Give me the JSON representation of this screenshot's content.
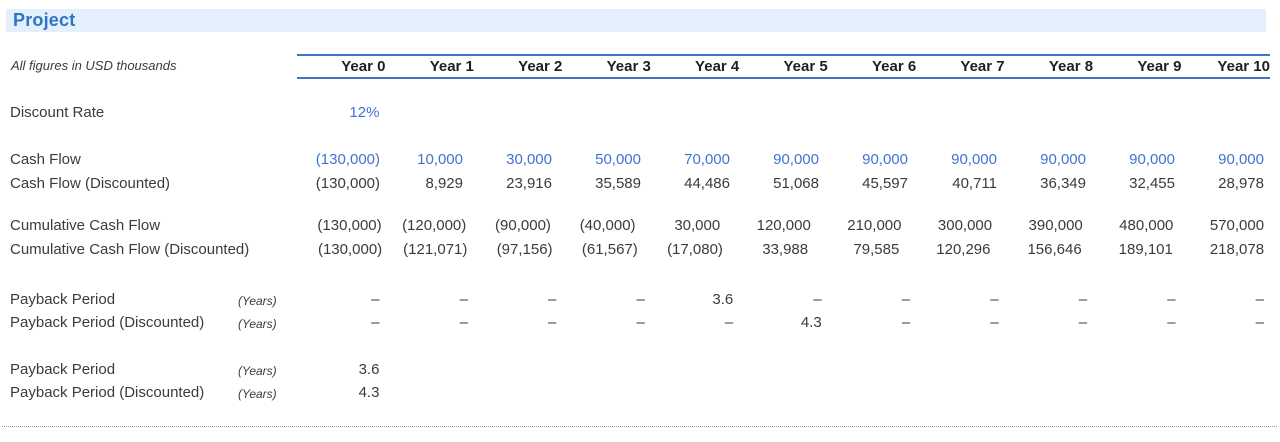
{
  "title": "Project",
  "note": "All figures in USD thousands",
  "columns": [
    "Year 0",
    "Year 1",
    "Year 2",
    "Year 3",
    "Year 4",
    "Year 5",
    "Year 6",
    "Year 7",
    "Year 8",
    "Year 9",
    "Year 10"
  ],
  "rows": [
    {
      "label": "Discount Rate",
      "unit": "",
      "style": "input",
      "values": [
        "12%",
        "",
        "",
        "",
        "",
        "",
        "",
        "",
        "",
        "",
        ""
      ]
    },
    {
      "label": "Cash Flow",
      "unit": "",
      "style": "input",
      "values": [
        "(130,000)",
        "10,000",
        "30,000",
        "50,000",
        "70,000",
        "90,000",
        "90,000",
        "90,000",
        "90,000",
        "90,000",
        "90,000"
      ]
    },
    {
      "label": "Cash Flow (Discounted)",
      "unit": "",
      "style": "calc",
      "values": [
        "(130,000)",
        "8,929",
        "23,916",
        "35,589",
        "44,486",
        "51,068",
        "45,597",
        "40,711",
        "36,349",
        "32,455",
        "28,978"
      ]
    },
    {
      "label": "Cumulative Cash Flow",
      "unit": "",
      "style": "calc",
      "values": [
        "(130,000)",
        "(120,000)",
        "(90,000)",
        "(40,000)",
        "30,000",
        "120,000",
        "210,000",
        "300,000",
        "390,000",
        "480,000",
        "570,000"
      ]
    },
    {
      "label": "Cumulative Cash Flow (Discounted)",
      "unit": "",
      "style": "calc",
      "values": [
        "(130,000)",
        "(121,071)",
        "(97,156)",
        "(61,567)",
        "(17,080)",
        "33,988",
        "79,585",
        "120,296",
        "156,646",
        "189,101",
        "218,078"
      ]
    },
    {
      "label": "Payback Period",
      "unit": "(Years)",
      "style": "calc",
      "values": [
        "–",
        "–",
        "–",
        "–",
        "3.6",
        "–",
        "–",
        "–",
        "–",
        "–",
        "–"
      ]
    },
    {
      "label": "Payback Period (Discounted)",
      "unit": "(Years)",
      "style": "calc",
      "values": [
        "–",
        "–",
        "–",
        "–",
        "–",
        "4.3",
        "–",
        "–",
        "–",
        "–",
        "–"
      ]
    },
    {
      "label": "Payback Period",
      "unit": "(Years)",
      "style": "calc",
      "values": [
        "3.6",
        "",
        "",
        "",
        "",
        "",
        "",
        "",
        "",
        "",
        ""
      ]
    },
    {
      "label": "Payback Period (Discounted)",
      "unit": "(Years)",
      "style": "calc",
      "values": [
        "4.3",
        "",
        "",
        "",
        "",
        "",
        "",
        "",
        "",
        "",
        ""
      ]
    }
  ],
  "colors": {
    "title_text": "#2e74c8",
    "title_background": "#e3effb",
    "header_border": "#4472c4",
    "input_value": "#4273d1",
    "calc_value": "#3b3b3b"
  }
}
